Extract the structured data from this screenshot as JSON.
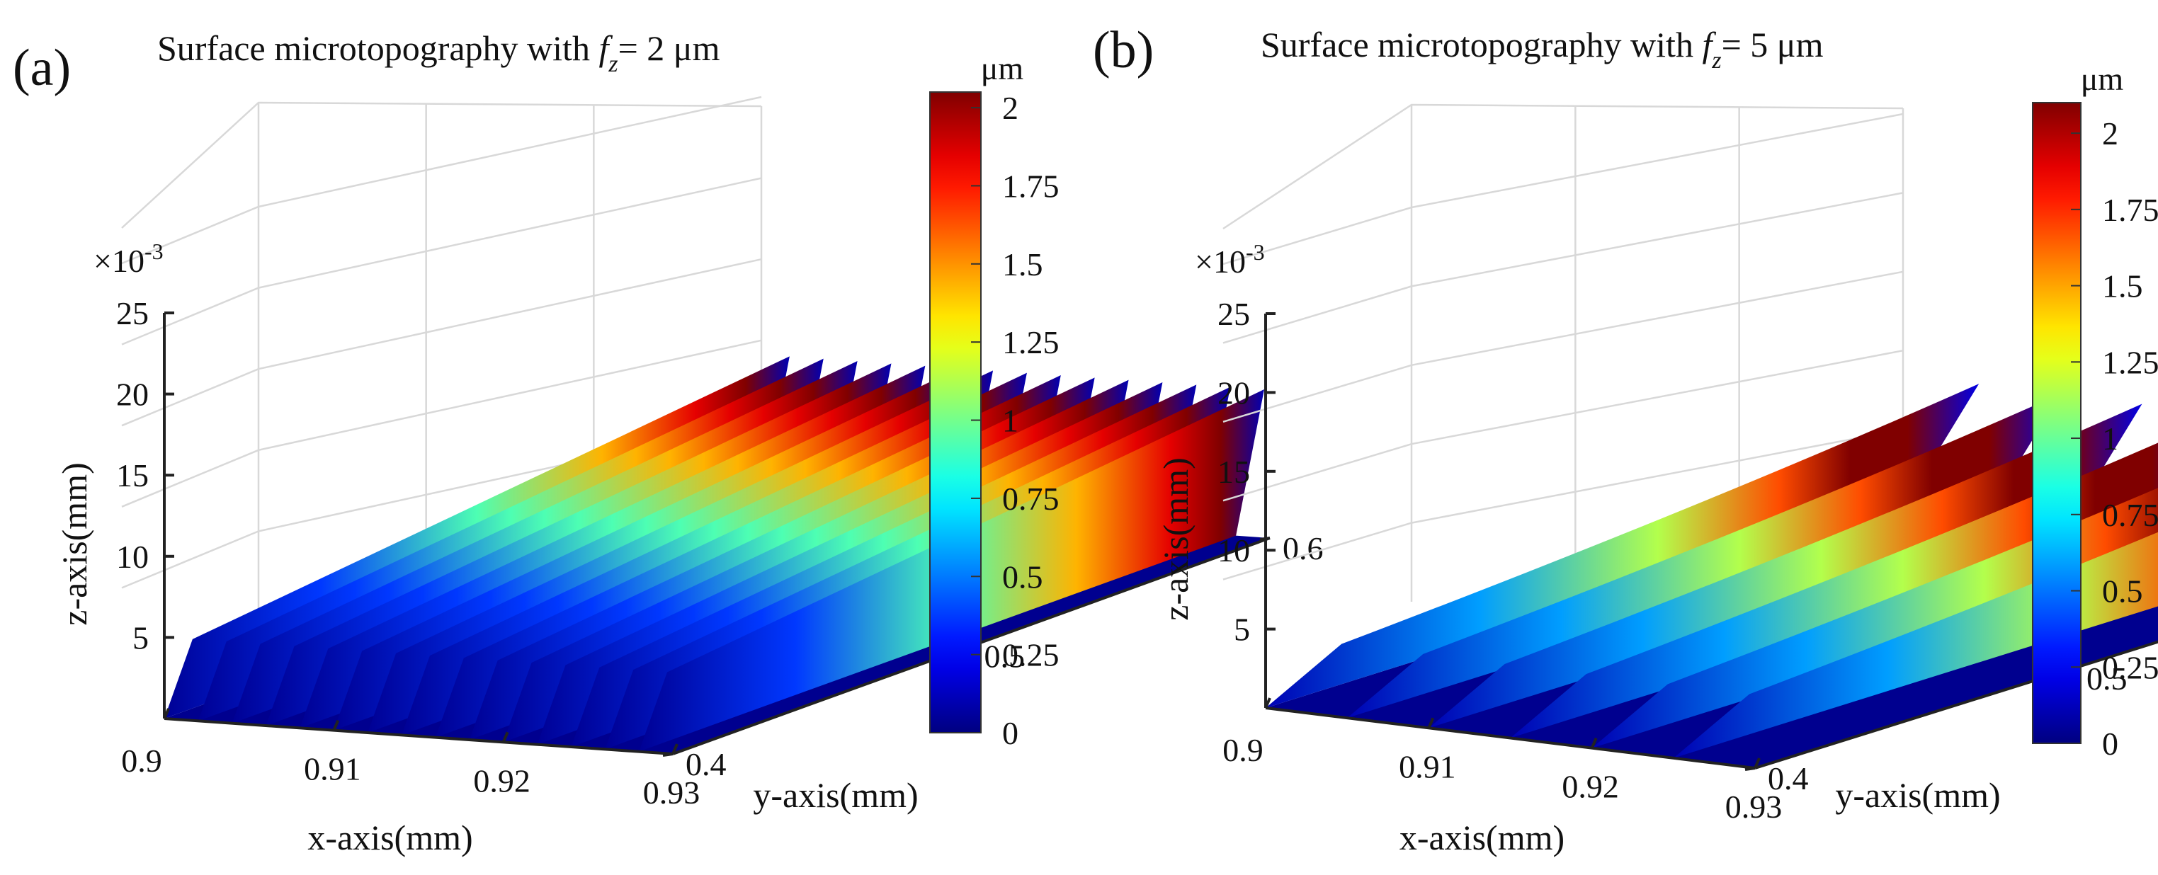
{
  "chart_data": [
    {
      "type": "surface",
      "panel": "(a)",
      "title_prefix": "Surface microtopography with ",
      "title_var": "f",
      "title_sub": "z",
      "title_suffix": "= 2 μm",
      "xlabel": "x-axis(mm)",
      "ylabel": "y-axis(mm)",
      "zlabel": "z-axis(mm)",
      "z_exponent_label": "×10",
      "z_exponent_power": "-3",
      "xlim": [
        0.9,
        0.93
      ],
      "ylim": [
        0.4,
        0.6
      ],
      "zlim": [
        0,
        0.025
      ],
      "x_ticks": [
        "0.9",
        "0.91",
        "0.92",
        "0.93"
      ],
      "y_ticks": [
        "0.4",
        "0.5",
        "0.6"
      ],
      "z_ticks": [
        "5",
        "10",
        "15",
        "20",
        "25"
      ],
      "feed_um": 2,
      "ridge_count": 15,
      "colorbar": {
        "unit": "μm",
        "min": 0,
        "max": 2.05,
        "ticks": [
          "0",
          "0.25",
          "0.5",
          "0.75",
          "1",
          "1.25",
          "1.5",
          "1.75",
          "2"
        ],
        "colormap": "jet"
      }
    },
    {
      "type": "surface",
      "panel": "(b)",
      "title_prefix": "Surface microtopography with ",
      "title_var": "f",
      "title_sub": "z",
      "title_suffix": "= 5 μm",
      "xlabel": "x-axis(mm)",
      "ylabel": "y-axis(mm)",
      "zlabel": "z-axis(mm)",
      "z_exponent_label": "×10",
      "z_exponent_power": "-3",
      "xlim": [
        0.9,
        0.93
      ],
      "ylim": [
        0.4,
        0.6
      ],
      "zlim": [
        0,
        0.025
      ],
      "x_ticks": [
        "0.9",
        "0.91",
        "0.92",
        "0.93"
      ],
      "y_ticks": [
        "0.4",
        "0.5",
        "0.6"
      ],
      "z_ticks": [
        "5",
        "10",
        "15",
        "20",
        "25"
      ],
      "feed_um": 5,
      "ridge_count": 6,
      "colorbar": {
        "unit": "μm",
        "min": 0,
        "max": 2.1,
        "ticks": [
          "0",
          "0.25",
          "0.5",
          "0.75",
          "1",
          "1.25",
          "1.5",
          "1.75",
          "2"
        ],
        "colormap": "jet"
      }
    }
  ]
}
